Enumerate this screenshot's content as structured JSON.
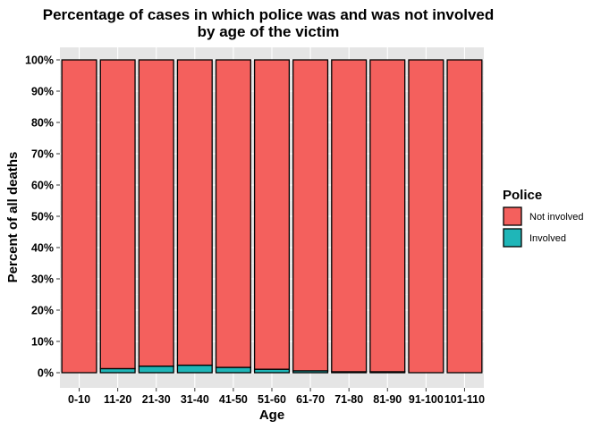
{
  "chart_data": {
    "type": "bar",
    "stacked": true,
    "title": "Percentage of cases in which police was and was not involved",
    "subtitle": "by age of the victim",
    "xlabel": "Age",
    "ylabel": "Percent of all deaths",
    "categories": [
      "0-10",
      "11-20",
      "21-30",
      "31-40",
      "41-50",
      "51-60",
      "61-70",
      "71-80",
      "81-90",
      "91-100",
      "101-110"
    ],
    "ylim": [
      0,
      1
    ],
    "yticks": [
      "0%",
      "10%",
      "20%",
      "30%",
      "40%",
      "50%",
      "60%",
      "70%",
      "80%",
      "90%",
      "100%"
    ],
    "ytick_values": [
      0,
      0.1,
      0.2,
      0.3,
      0.4,
      0.5,
      0.6,
      0.7,
      0.8,
      0.9,
      1.0
    ],
    "grid": true,
    "background": "#e5e5e5",
    "legend": {
      "title": "Police",
      "position": "right"
    },
    "series": [
      {
        "name": "Involved",
        "color": "#1fb6b8",
        "values": [
          0.0,
          0.013,
          0.021,
          0.024,
          0.017,
          0.011,
          0.006,
          0.003,
          0.003,
          0.0,
          0.0
        ]
      },
      {
        "name": "Not involved",
        "color": "#f4605d",
        "values": [
          1.0,
          0.987,
          0.979,
          0.976,
          0.983,
          0.989,
          0.994,
          0.997,
          0.997,
          1.0,
          1.0
        ]
      }
    ],
    "legend_order": [
      "Not involved",
      "Involved"
    ]
  }
}
